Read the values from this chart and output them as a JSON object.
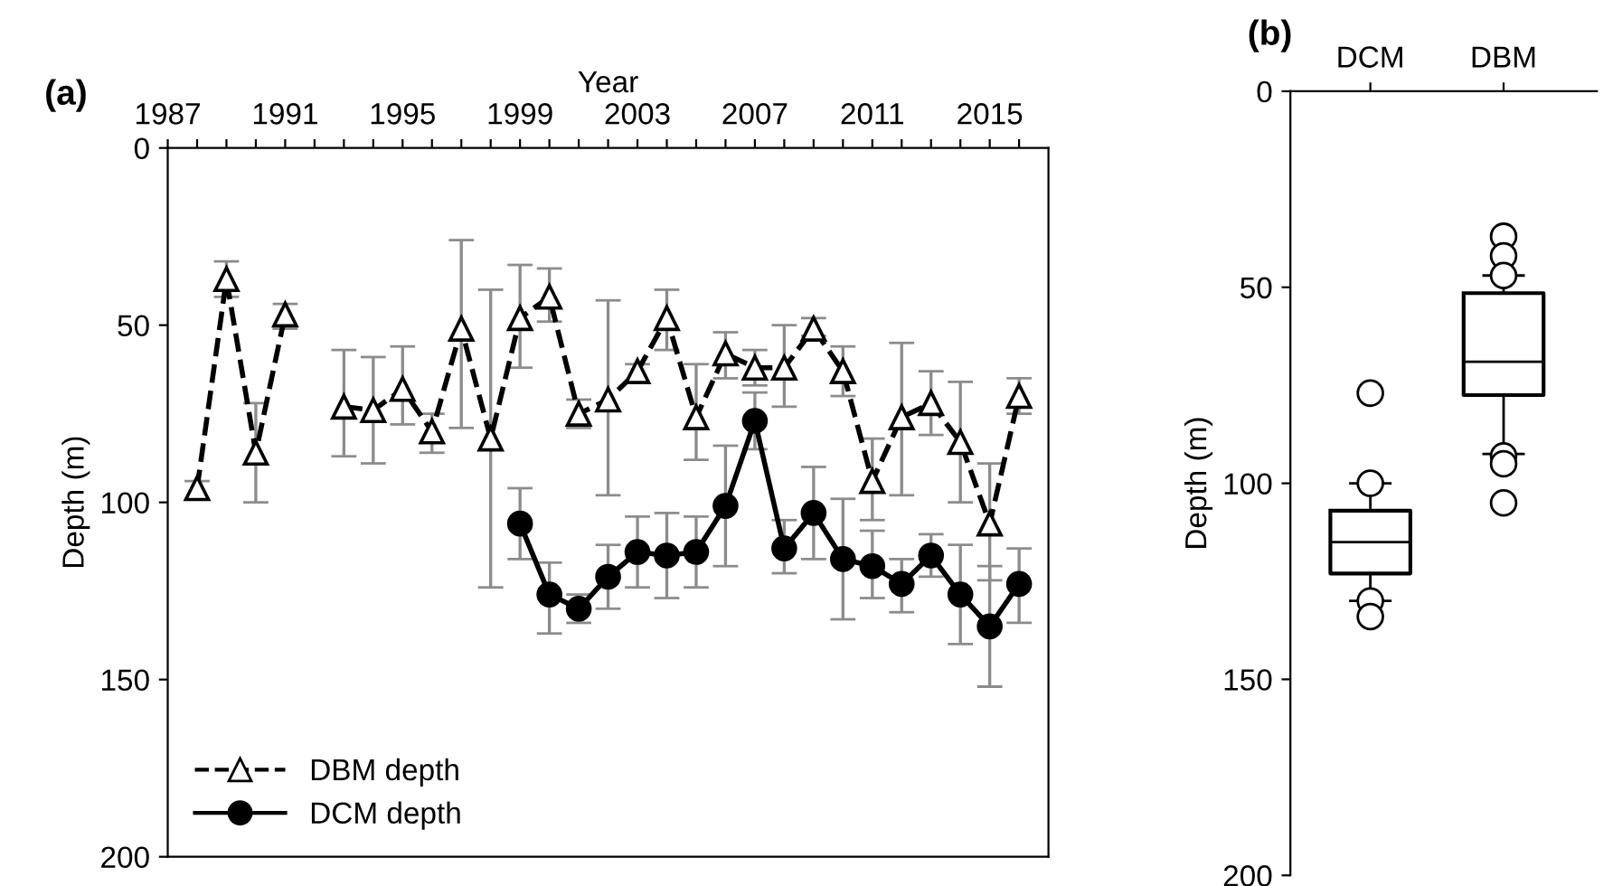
{
  "chart_data": [
    {
      "type": "line",
      "title": "(a)",
      "xlabel": "Year",
      "ylabel": "Depth (m)",
      "xlim": [
        1987,
        2017
      ],
      "ylim": [
        200,
        0
      ],
      "xticks": [
        1987,
        {
          "value": 1988,
          "label": null
        },
        {
          "value": 1989,
          "label": null
        },
        {
          "value": 1990,
          "label": null
        },
        1991,
        {
          "value": 1992,
          "label": null
        },
        {
          "value": 1993,
          "label": null
        },
        {
          "value": 1994,
          "label": null
        },
        1995,
        {
          "value": 1996,
          "label": null
        },
        {
          "value": 1997,
          "label": null
        },
        {
          "value": 1998,
          "label": null
        },
        1999,
        {
          "value": 2000,
          "label": null
        },
        {
          "value": 2001,
          "label": null
        },
        {
          "value": 2002,
          "label": null
        },
        2003,
        {
          "value": 2004,
          "label": null
        },
        {
          "value": 2005,
          "label": null
        },
        {
          "value": 2006,
          "label": null
        },
        2007,
        {
          "value": 2008,
          "label": null
        },
        {
          "value": 2009,
          "label": null
        },
        {
          "value": 2010,
          "label": null
        },
        2011,
        {
          "value": 2012,
          "label": null
        },
        {
          "value": 2013,
          "label": null
        },
        {
          "value": 2014,
          "label": null
        },
        2015,
        {
          "value": 2016,
          "label": null
        }
      ],
      "yticks": [
        0,
        50,
        100,
        150,
        200
      ],
      "grid": false,
      "legend": "bottom left",
      "series": [
        {
          "name": "DBM depth",
          "color": "#000000",
          "marker": "triangle",
          "line_style": "dashed",
          "x": [
            1988,
            1989,
            1990,
            1991,
            1993,
            1994,
            1995,
            1996,
            1997,
            1998,
            1999,
            2000,
            2001,
            2002,
            2003,
            2004,
            2005,
            2006,
            2007,
            2008,
            2009,
            2010,
            2011,
            2012,
            2013,
            2014,
            2015,
            2016
          ],
          "values": [
            96,
            37,
            86,
            47,
            73,
            74,
            68,
            80,
            51,
            82,
            48,
            42,
            75,
            71,
            63,
            48,
            76,
            58,
            62,
            62,
            51,
            63,
            94,
            76,
            72,
            83,
            106,
            70
          ],
          "errors": [
            [
              94,
              99
            ],
            [
              32,
              42
            ],
            [
              72,
              100
            ],
            [
              44,
              51
            ],
            [
              57,
              87
            ],
            [
              59,
              89
            ],
            [
              56,
              78
            ],
            [
              75,
              86
            ],
            [
              26,
              79
            ],
            [
              40,
              124
            ],
            [
              33,
              62
            ],
            [
              34,
              49
            ],
            [
              71,
              79
            ],
            [
              43,
              98
            ],
            [
              61,
              66
            ],
            [
              40,
              57
            ],
            [
              61,
              88
            ],
            [
              52,
              65
            ],
            [
              57,
              67
            ],
            [
              50,
              73
            ],
            [
              48,
              53
            ],
            [
              56,
              70
            ],
            [
              82,
              105
            ],
            [
              55,
              98
            ],
            [
              63,
              81
            ],
            [
              66,
              100
            ],
            [
              89,
              122
            ],
            [
              65,
              75
            ]
          ]
        },
        {
          "name": "DCM depth",
          "color": "#000000",
          "marker": "circle",
          "line_style": "solid",
          "x": [
            1999,
            2000,
            2001,
            2002,
            2003,
            2004,
            2005,
            2006,
            2007,
            2008,
            2009,
            2010,
            2011,
            2012,
            2013,
            2014,
            2015,
            2016
          ],
          "values": [
            106,
            126,
            130,
            121,
            114,
            115,
            114,
            101,
            77,
            113,
            103,
            116,
            118,
            123,
            115,
            126,
            135,
            123
          ],
          "errors": [
            [
              96,
              116
            ],
            [
              117,
              137
            ],
            [
              126,
              134
            ],
            [
              112,
              130
            ],
            [
              104,
              124
            ],
            [
              103,
              127
            ],
            [
              104,
              124
            ],
            [
              84,
              118
            ],
            [
              69,
              85
            ],
            [
              105,
              120
            ],
            [
              90,
              116
            ],
            [
              99,
              133
            ],
            [
              108,
              127
            ],
            [
              116,
              131
            ],
            [
              109,
              121
            ],
            [
              112,
              140
            ],
            [
              118,
              152
            ],
            [
              113,
              134
            ]
          ]
        }
      ]
    },
    {
      "type": "box",
      "title": "(b)",
      "ylabel": "Depth (m)",
      "categories": [
        "DCM",
        "DBM"
      ],
      "ylim": [
        200,
        0
      ],
      "yticks": [
        0,
        50,
        100,
        150,
        200
      ],
      "grid": false,
      "boxes": [
        {
          "low": 100,
          "q1": 107,
          "median": 115,
          "q3": 123,
          "high": 130,
          "outliers": [
            77,
            100,
            130,
            134
          ]
        },
        {
          "low": 47,
          "q1": 51.5,
          "median": 69,
          "q3": 77.5,
          "high": 92.5,
          "outliers": [
            37,
            42,
            47,
            93,
            95,
            105
          ]
        }
      ]
    }
  ]
}
